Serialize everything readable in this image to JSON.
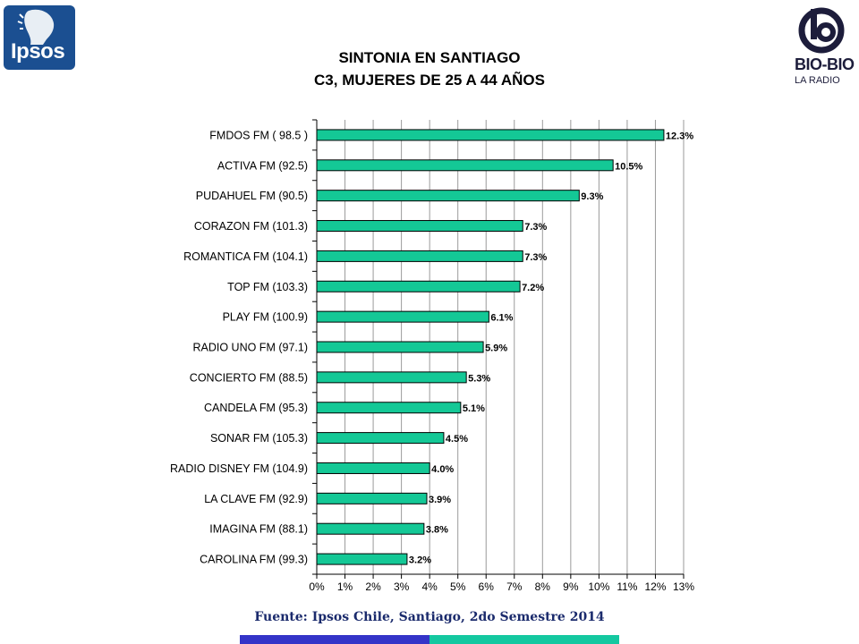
{
  "header": {
    "logo_left": "Ipsos",
    "logo_right_main": "BIO-BIO",
    "logo_right_sub": "LA RADIO",
    "title_line1": "SINTONIA EN SANTIAGO",
    "title_line2": "C3, MUJERES DE 25 A 44 AÑOS"
  },
  "footer": {
    "source": "Fuente: Ipsos Chile, Santiago, 2do Semestre 2014",
    "stripe_colors": [
      "#3434c8",
      "#14c8a0"
    ]
  },
  "chart_data": {
    "type": "bar",
    "orientation": "horizontal",
    "categories": [
      "FMDOS FM ( 98.5 )",
      "ACTIVA  FM (92.5)",
      "PUDAHUEL FM (90.5)",
      "CORAZON FM (101.3)",
      "ROMANTICA FM (104.1)",
      "TOP FM (103.3)",
      "PLAY FM (100.9)",
      "RADIO UNO FM (97.1)",
      "CONCIERTO FM (88.5)",
      "CANDELA FM (95.3)",
      "SONAR FM (105.3)",
      "RADIO DISNEY FM (104.9)",
      "LA CLAVE FM (92.9)",
      "IMAGINA FM (88.1)",
      "CAROLINA FM (99.3)"
    ],
    "values": [
      12.3,
      10.5,
      9.3,
      7.3,
      7.3,
      7.2,
      6.1,
      5.9,
      5.3,
      5.1,
      4.5,
      4.0,
      3.9,
      3.8,
      3.2
    ],
    "value_labels": [
      "12.3%",
      "10.5%",
      "9.3%",
      "7.3%",
      "7.3%",
      "7.2%",
      "6.1%",
      "5.9%",
      "5.3%",
      "5.1%",
      "4.5%",
      "4.0%",
      "3.9%",
      "3.8%",
      "3.2%"
    ],
    "xticks": [
      "0%",
      "1%",
      "2%",
      "3%",
      "4%",
      "5%",
      "6%",
      "7%",
      "8%",
      "9%",
      "10%",
      "11%",
      "12%",
      "13%"
    ],
    "xlim": [
      0,
      13
    ],
    "grid": true,
    "bar_color": "#14c896"
  }
}
